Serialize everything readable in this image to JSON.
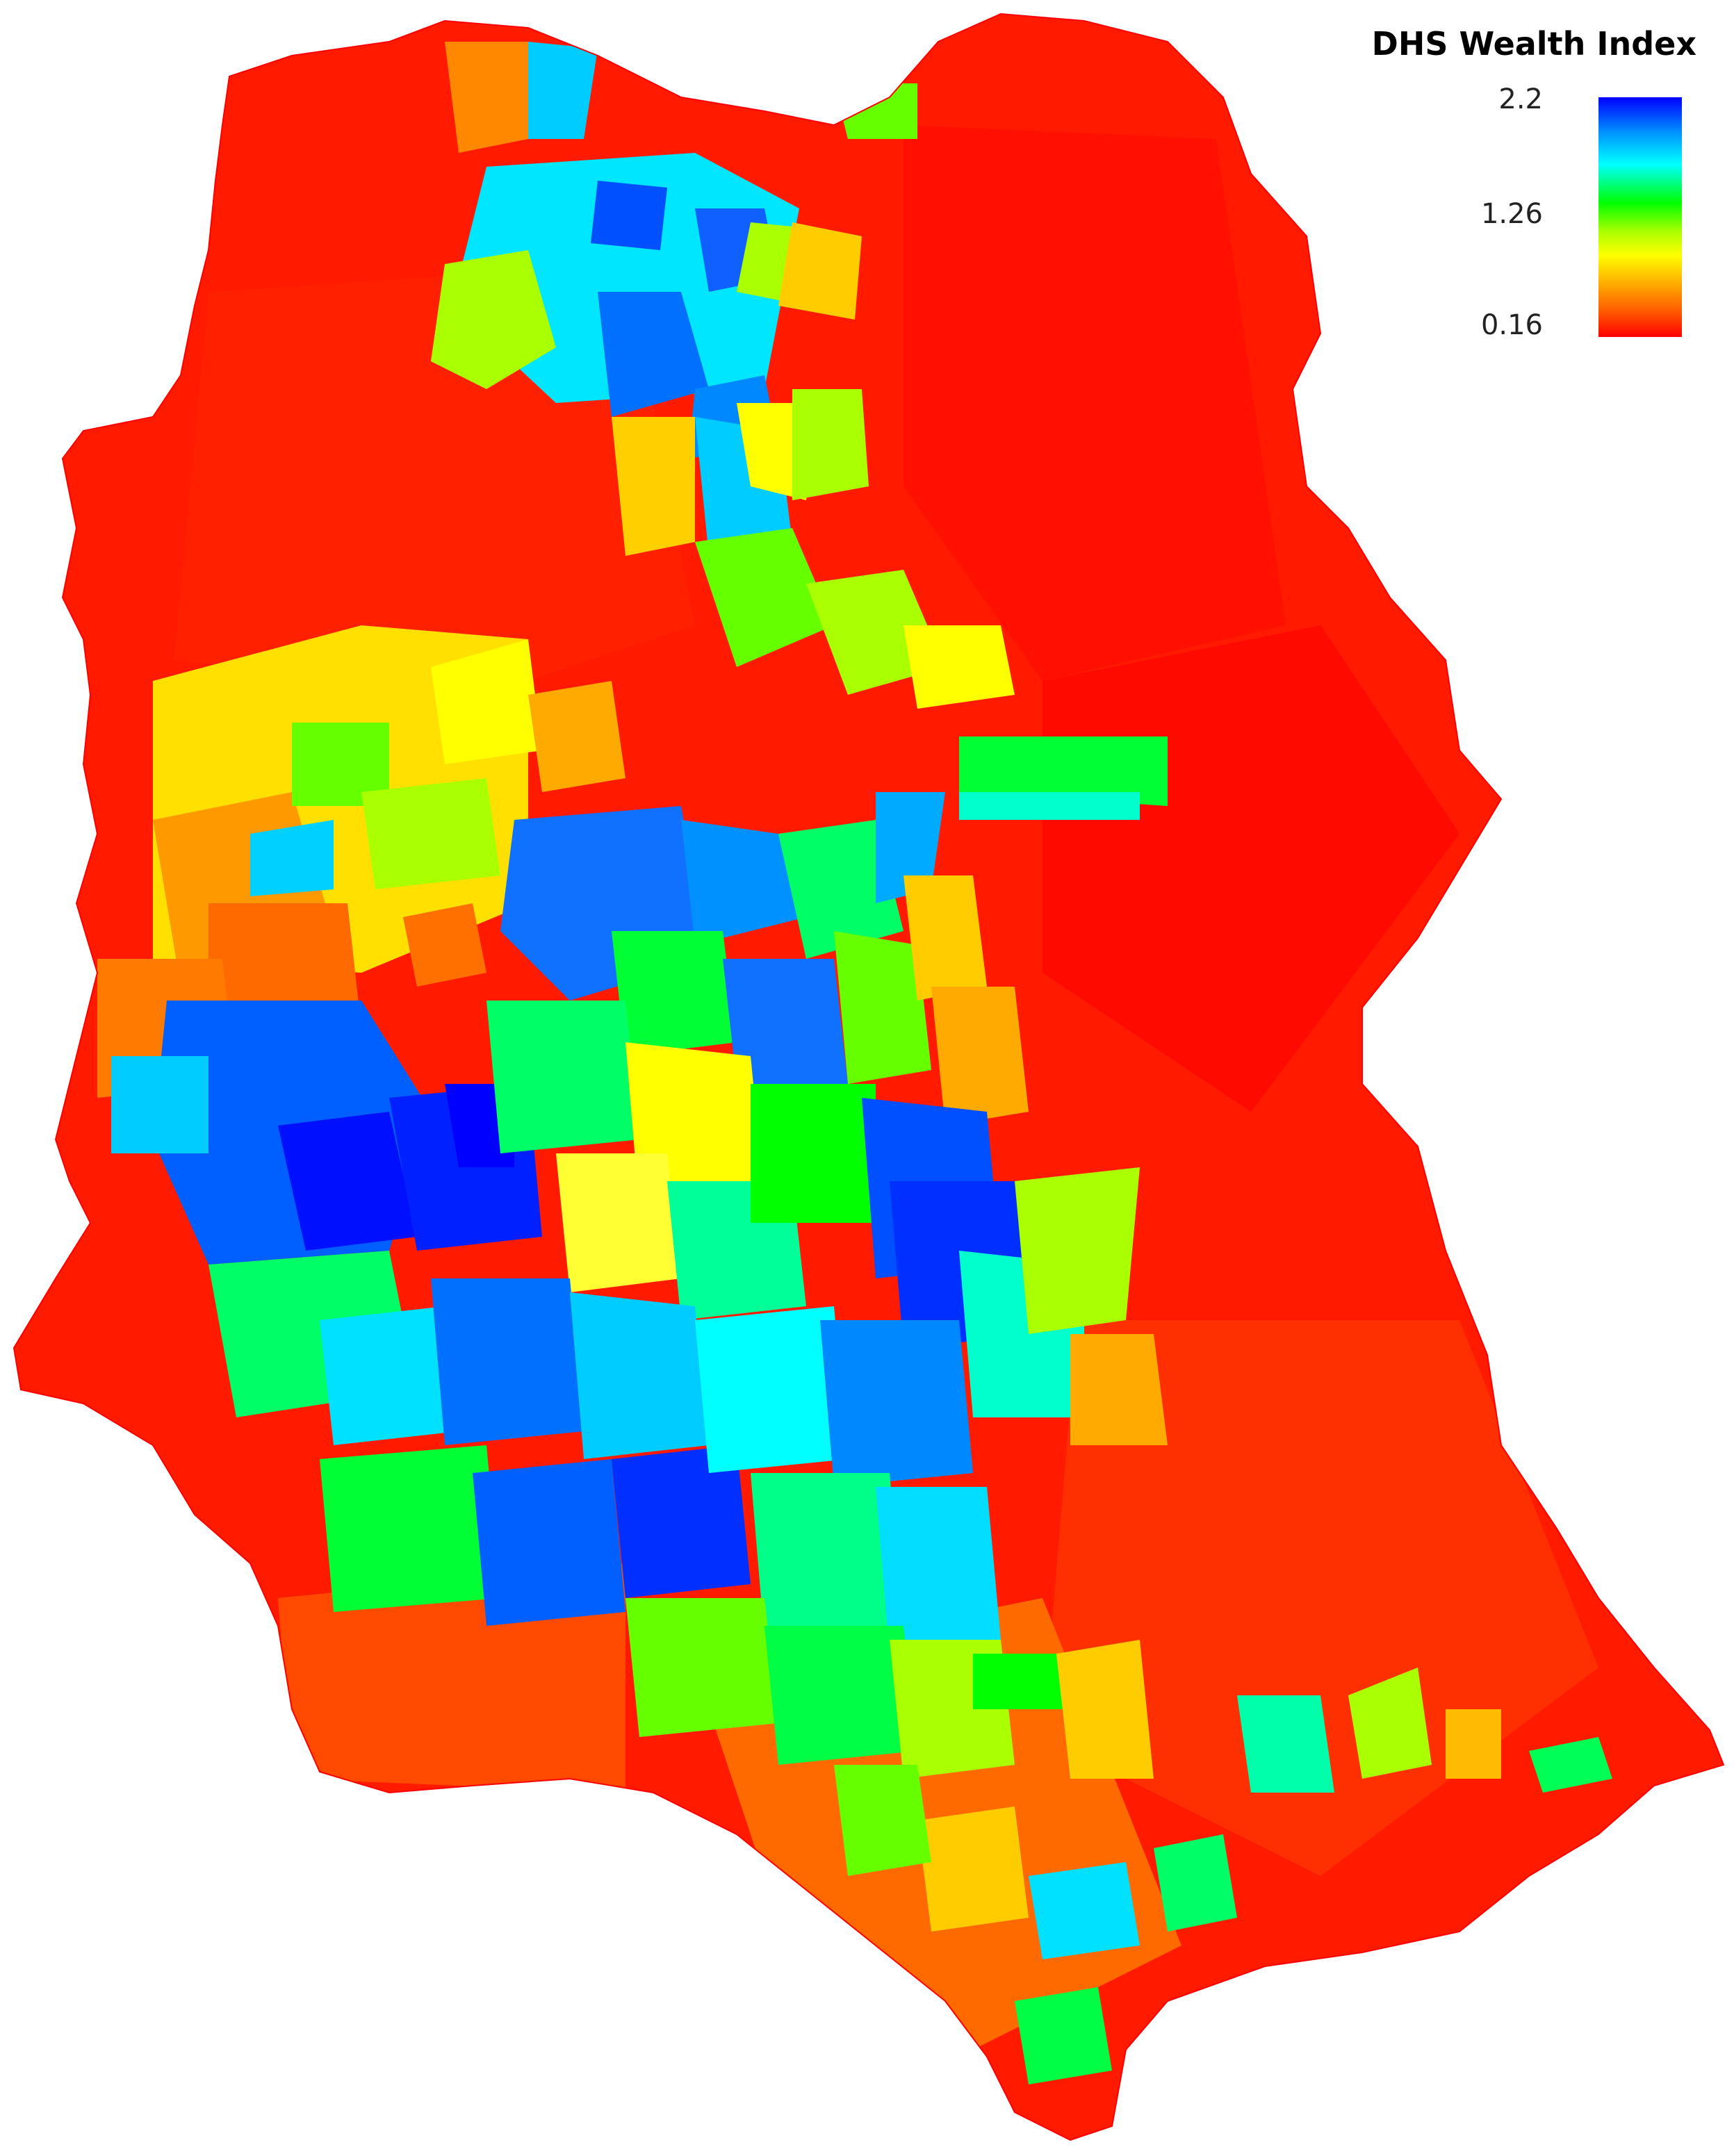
{
  "legend": {
    "title": "DHS Wealth Index",
    "ticks": [
      "2.2",
      "1.26",
      "0.16"
    ],
    "max": 2.2,
    "mid": 1.26,
    "min": 0.16,
    "gradient": [
      "#0000ff",
      "#0096ff",
      "#00ffff",
      "#00ff00",
      "#aaff00",
      "#ffff00",
      "#ffaa00",
      "#ff5500",
      "#ff0000"
    ]
  }
}
